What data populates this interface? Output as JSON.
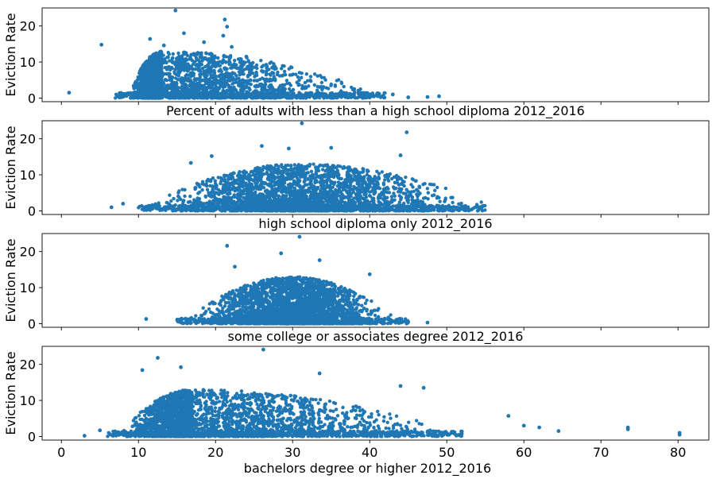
{
  "chart_data": [
    {
      "type": "scatter",
      "xlabel": "Percent of adults with less than a high school diploma 2012_2016",
      "ylabel": "Eviction Rate",
      "xlim": [
        -2.5,
        84
      ],
      "ylim": [
        -1,
        25
      ],
      "yticks": [
        "0",
        "10",
        "20"
      ],
      "xticks": [],
      "color": "#1f77b4",
      "dist": {
        "mode": 13,
        "left": 9,
        "right": 40,
        "xmin": 1,
        "xmax": 49
      },
      "points": [
        {
          "x": 21.5,
          "y": 19.8
        },
        {
          "x": 21.2,
          "y": 21.8
        },
        {
          "x": 22.1,
          "y": 14.2
        },
        {
          "x": 21.0,
          "y": 17.3
        },
        {
          "x": 11.5,
          "y": 16.4
        },
        {
          "x": 15.9,
          "y": 18.0
        },
        {
          "x": 5.2,
          "y": 14.8
        },
        {
          "x": 38.0,
          "y": 2.5
        },
        {
          "x": 41.0,
          "y": 0.9
        },
        {
          "x": 43.0,
          "y": 1.0
        },
        {
          "x": 47.5,
          "y": 0.3
        },
        {
          "x": 49.0,
          "y": 0.5
        },
        {
          "x": 45.0,
          "y": 0.2
        },
        {
          "x": 1.0,
          "y": 1.5
        },
        {
          "x": 14.8,
          "y": 24.3
        },
        {
          "x": 24.0,
          "y": 11.5
        },
        {
          "x": 18.5,
          "y": 15.5
        },
        {
          "x": 13.3,
          "y": 14.6
        }
      ]
    },
    {
      "type": "scatter",
      "xlabel": "high school diploma only 2012_2016",
      "ylabel": "Eviction Rate",
      "xlim": [
        -2.5,
        84
      ],
      "ylim": [
        -1,
        25
      ],
      "yticks": [
        "0",
        "10",
        "20"
      ],
      "xticks": [],
      "color": "#1f77b4",
      "dist": {
        "mode": 31,
        "left": 12,
        "right": 55,
        "xmin": 6,
        "xmax": 55
      },
      "points": [
        {
          "x": 31.2,
          "y": 24.3
        },
        {
          "x": 44.8,
          "y": 21.8
        },
        {
          "x": 6.5,
          "y": 1.0
        },
        {
          "x": 8.0,
          "y": 2.0
        },
        {
          "x": 52.5,
          "y": 1.0
        },
        {
          "x": 54.5,
          "y": 0.8
        },
        {
          "x": 26.0,
          "y": 18.0
        },
        {
          "x": 29.5,
          "y": 17.3
        },
        {
          "x": 35.0,
          "y": 17.5
        },
        {
          "x": 44.0,
          "y": 15.4
        },
        {
          "x": 19.5,
          "y": 15.2
        },
        {
          "x": 16.8,
          "y": 13.3
        }
      ]
    },
    {
      "type": "scatter",
      "xlabel": "some college or associates degree 2012_2016",
      "ylabel": "Eviction Rate",
      "xlim": [
        -2.5,
        84
      ],
      "ylim": [
        -1,
        25
      ],
      "yticks": [
        "0",
        "10",
        "20"
      ],
      "xticks": [],
      "color": "#1f77b4",
      "dist": {
        "mode": 30,
        "left": 17,
        "right": 43,
        "xmin": 11,
        "xmax": 48
      },
      "points": [
        {
          "x": 21.5,
          "y": 21.6
        },
        {
          "x": 30.9,
          "y": 24.1
        },
        {
          "x": 11.0,
          "y": 1.3
        },
        {
          "x": 47.5,
          "y": 0.3
        },
        {
          "x": 45.0,
          "y": 0.5
        },
        {
          "x": 28.5,
          "y": 19.5
        },
        {
          "x": 33.5,
          "y": 17.6
        },
        {
          "x": 22.5,
          "y": 15.8
        },
        {
          "x": 40.0,
          "y": 13.7
        }
      ]
    },
    {
      "type": "scatter",
      "xlabel": "bachelors degree or higher 2012_2016",
      "ylabel": "Eviction Rate",
      "xlim": [
        -2.5,
        84
      ],
      "ylim": [
        -1,
        25
      ],
      "yticks": [
        "0",
        "10",
        "20"
      ],
      "xticks": [
        "0",
        "10",
        "20",
        "30",
        "40",
        "50",
        "60",
        "70",
        "80"
      ],
      "xtickvals": [
        0,
        10,
        20,
        30,
        40,
        50,
        60,
        70,
        80
      ],
      "color": "#1f77b4",
      "dist": {
        "mode": 17,
        "left": 8,
        "right": 50,
        "xmin": 5,
        "xmax": 62
      },
      "points": [
        {
          "x": 26.2,
          "y": 24.1
        },
        {
          "x": 12.5,
          "y": 21.8
        },
        {
          "x": 3.0,
          "y": 0.2
        },
        {
          "x": 5.0,
          "y": 1.7
        },
        {
          "x": 64.5,
          "y": 1.5
        },
        {
          "x": 73.5,
          "y": 2.0
        },
        {
          "x": 80.2,
          "y": 1.0
        },
        {
          "x": 80.2,
          "y": 0.5
        },
        {
          "x": 73.5,
          "y": 2.5
        },
        {
          "x": 15.5,
          "y": 19.2
        },
        {
          "x": 10.5,
          "y": 18.4
        },
        {
          "x": 33.5,
          "y": 17.5
        },
        {
          "x": 47.0,
          "y": 13.5
        },
        {
          "x": 44.0,
          "y": 14.0
        },
        {
          "x": 58.0,
          "y": 5.7
        },
        {
          "x": 62.0,
          "y": 2.5
        },
        {
          "x": 60.0,
          "y": 3.0
        }
      ]
    }
  ]
}
